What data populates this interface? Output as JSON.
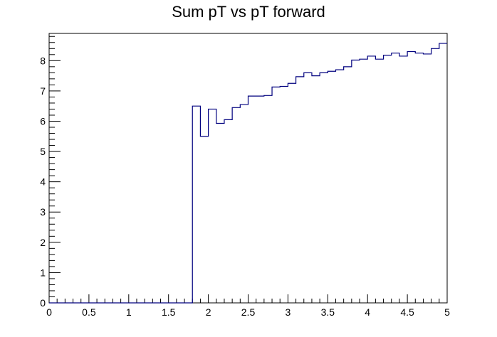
{
  "chart_data": {
    "type": "histogram",
    "title": "Sum pT vs pT forward",
    "xlabel": "",
    "ylabel": "",
    "xlim": [
      0,
      5
    ],
    "ylim": [
      0,
      8.9
    ],
    "grid": false,
    "legend": "none",
    "line_color": "#00007f",
    "bin_width": 0.1,
    "x_ticks": [
      {
        "v": 0,
        "label": "0"
      },
      {
        "v": 0.5,
        "label": "0.5"
      },
      {
        "v": 1,
        "label": "1"
      },
      {
        "v": 1.5,
        "label": "1.5"
      },
      {
        "v": 2,
        "label": "2"
      },
      {
        "v": 2.5,
        "label": "2.5"
      },
      {
        "v": 3,
        "label": "3"
      },
      {
        "v": 3.5,
        "label": "3.5"
      },
      {
        "v": 4,
        "label": "4"
      },
      {
        "v": 4.5,
        "label": "4.5"
      },
      {
        "v": 5,
        "label": "5"
      }
    ],
    "y_ticks": [
      {
        "v": 0,
        "label": "0"
      },
      {
        "v": 1,
        "label": "1"
      },
      {
        "v": 2,
        "label": "2"
      },
      {
        "v": 3,
        "label": "3"
      },
      {
        "v": 4,
        "label": "4"
      },
      {
        "v": 5,
        "label": "5"
      },
      {
        "v": 6,
        "label": "6"
      },
      {
        "v": 7,
        "label": "7"
      },
      {
        "v": 8,
        "label": "8"
      }
    ],
    "bin_edges": [
      0.0,
      0.1,
      0.2,
      0.3,
      0.4,
      0.5,
      0.6,
      0.7,
      0.8,
      0.9,
      1.0,
      1.1,
      1.2,
      1.3,
      1.4,
      1.5,
      1.6,
      1.7,
      1.8,
      1.9,
      2.0,
      2.1,
      2.2,
      2.3,
      2.4,
      2.5,
      2.6,
      2.7,
      2.8,
      2.9,
      3.0,
      3.1,
      3.2,
      3.3,
      3.4,
      3.5,
      3.6,
      3.7,
      3.8,
      3.9,
      4.0,
      4.1,
      4.2,
      4.3,
      4.4,
      4.5,
      4.6,
      4.7,
      4.8,
      4.9,
      5.0
    ],
    "values": [
      0,
      0,
      0,
      0,
      0,
      0,
      0,
      0,
      0,
      0,
      0,
      0,
      0,
      0,
      0,
      0,
      0,
      0,
      6.5,
      5.5,
      6.4,
      5.93,
      6.05,
      6.45,
      6.55,
      6.83,
      6.83,
      6.85,
      7.13,
      7.15,
      7.25,
      7.47,
      7.6,
      7.5,
      7.6,
      7.65,
      7.7,
      7.8,
      8.02,
      8.05,
      8.15,
      8.05,
      8.18,
      8.25,
      8.15,
      8.3,
      8.25,
      8.22,
      8.4,
      8.57
    ]
  }
}
